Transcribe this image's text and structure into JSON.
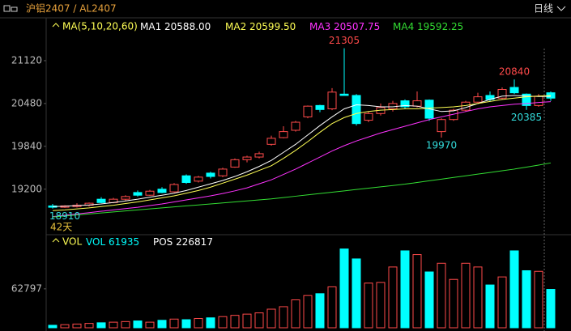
{
  "header": {
    "symbol": "沪铝2407 / AL2407",
    "period": "日线"
  },
  "chart_data": [
    {
      "type": "candlestick",
      "legend_title": "MA(5,10,20,60)",
      "open": [
        18950,
        18930,
        18940,
        18960,
        19050,
        19000,
        19050,
        19150,
        19110,
        19200,
        19160,
        19400,
        19320,
        19440,
        19400,
        19530,
        19640,
        19680,
        19870,
        19970,
        20080,
        20280,
        20450,
        20400,
        20620,
        20600,
        20230,
        20330,
        20400,
        20520,
        20440,
        20530,
        20060,
        20240,
        20380,
        20500,
        20600,
        20560,
        20720,
        20620,
        20450,
        20640
      ],
      "high": [
        18980,
        18960,
        18990,
        19000,
        19080,
        19070,
        19110,
        19180,
        19190,
        19230,
        19290,
        19420,
        19400,
        19460,
        19520,
        19660,
        19700,
        19760,
        20000,
        20140,
        20220,
        20450,
        20460,
        20710,
        21305,
        20620,
        20360,
        20480,
        20520,
        20540,
        20660,
        20540,
        20260,
        20400,
        20520,
        20640,
        20660,
        20720,
        20840,
        20630,
        20620,
        20660
      ],
      "low": [
        18910,
        18920,
        18925,
        18940,
        18990,
        18990,
        19030,
        19090,
        19100,
        19140,
        19150,
        19280,
        19300,
        19360,
        19380,
        19520,
        19600,
        19660,
        19850,
        19960,
        20060,
        20260,
        20350,
        20380,
        20600,
        20150,
        20200,
        20300,
        20360,
        20400,
        20420,
        20220,
        19970,
        20220,
        20360,
        20480,
        20510,
        20540,
        20620,
        20385,
        20430,
        20520
      ],
      "close": [
        18930,
        18950,
        18960,
        18990,
        19000,
        19050,
        19090,
        19110,
        19170,
        19150,
        19270,
        19300,
        19380,
        19390,
        19500,
        19640,
        19680,
        19730,
        19960,
        20060,
        20200,
        20440,
        20390,
        20650,
        20600,
        20180,
        20330,
        20420,
        20480,
        20430,
        20520,
        20260,
        20240,
        20380,
        20500,
        20580,
        20540,
        20690,
        20640,
        20450,
        20590,
        20560
      ],
      "up_color": "#ff4a4a",
      "down_color": "#00ffff",
      "ylim": [
        18520,
        21760
      ],
      "yticks": [
        19200,
        19840,
        20480,
        21120
      ],
      "annotations": [
        21305,
        20840,
        20385,
        19970,
        18910
      ],
      "count_label": "42天",
      "series": [
        {
          "name": "MA1",
          "color": "#ffffff",
          "value_label": "20588.00",
          "values": [
            18940,
            18945,
            18955,
            18965,
            18980,
            19000,
            19025,
            19050,
            19080,
            19110,
            19140,
            19180,
            19230,
            19280,
            19330,
            19390,
            19460,
            19540,
            19630,
            19750,
            19870,
            20010,
            20150,
            20280,
            20400,
            20460,
            20450,
            20430,
            20430,
            20450,
            20440,
            20400,
            20360,
            20370,
            20420,
            20480,
            20540,
            20590,
            20600,
            20590,
            20585,
            20588
          ]
        },
        {
          "name": "MA2",
          "color": "#ffff55",
          "value_label": "20599.50",
          "values": [
            18880,
            18890,
            18905,
            18920,
            18940,
            18960,
            18985,
            19010,
            19040,
            19070,
            19100,
            19140,
            19180,
            19230,
            19290,
            19350,
            19410,
            19480,
            19550,
            19660,
            19780,
            19910,
            20050,
            20180,
            20270,
            20330,
            20360,
            20380,
            20390,
            20400,
            20400,
            20410,
            20420,
            20430,
            20450,
            20480,
            20510,
            20540,
            20560,
            20580,
            20590,
            20599.5
          ]
        },
        {
          "name": "MA3",
          "color": "#ff33ff",
          "value_label": "20507.75",
          "values": [
            18790,
            18810,
            18830,
            18850,
            18870,
            18890,
            18910,
            18930,
            18955,
            18980,
            19010,
            19040,
            19070,
            19100,
            19135,
            19175,
            19220,
            19280,
            19340,
            19420,
            19500,
            19590,
            19680,
            19770,
            19850,
            19920,
            19980,
            20040,
            20090,
            20140,
            20190,
            20240,
            20280,
            20320,
            20360,
            20400,
            20430,
            20450,
            20470,
            20480,
            20495,
            20507.75
          ]
        },
        {
          "name": "MA4",
          "color": "#33dd33",
          "value_label": "19592.25",
          "values": [
            18785,
            18800,
            18815,
            18830,
            18845,
            18860,
            18875,
            18890,
            18905,
            18920,
            18935,
            18950,
            18965,
            18980,
            18995,
            19010,
            19025,
            19040,
            19055,
            19075,
            19095,
            19115,
            19135,
            19155,
            19175,
            19195,
            19215,
            19235,
            19255,
            19275,
            19300,
            19325,
            19350,
            19375,
            19400,
            19425,
            19450,
            19475,
            19500,
            19530,
            19560,
            19592.25
          ]
        }
      ]
    },
    {
      "type": "volume",
      "legend_title": "VOL",
      "name": "VOL",
      "pos_name": "POS",
      "pos": 226817,
      "values": [
        4000,
        5000,
        6000,
        7000,
        8000,
        9000,
        10000,
        11000,
        9000,
        12000,
        14000,
        13000,
        15000,
        16000,
        18000,
        20000,
        22000,
        24000,
        30000,
        34000,
        45000,
        52000,
        55000,
        66000,
        127000,
        111000,
        72000,
        73000,
        98000,
        124000,
        118000,
        90000,
        104000,
        78000,
        104000,
        98000,
        69000,
        82000,
        124000,
        92000,
        91000,
        61935
      ],
      "ylim": [
        0,
        137000
      ],
      "yticks": [
        62797
      ]
    }
  ]
}
